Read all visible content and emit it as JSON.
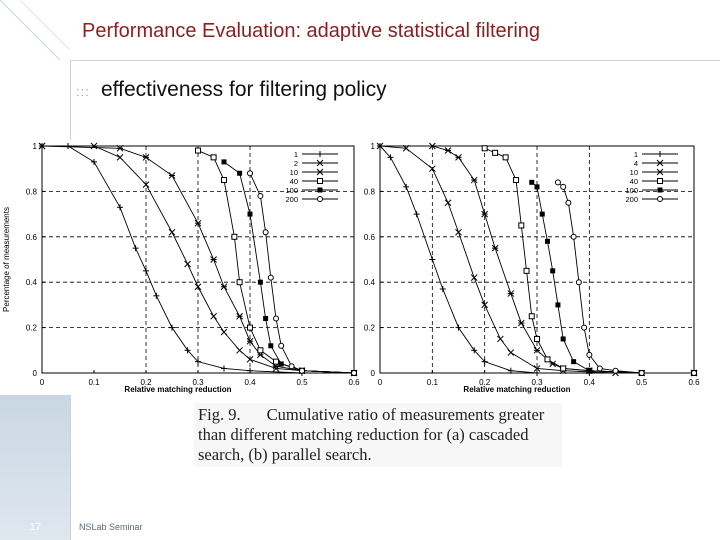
{
  "slide": {
    "title": "Performance Evaluation: adaptive statistical filtering",
    "bullet_marker": ":::",
    "subtitle": "effectiveness for filtering policy",
    "page_number": "17",
    "footer": "NSLab Seminar"
  },
  "caption": {
    "figure_label": "Fig. 9.",
    "text": "Cumulative ratio of measurements greater than different matching reduction for (a) cascaded search, (b) parallel search."
  },
  "chart_data": [
    {
      "type": "line",
      "panel": "a",
      "title": "",
      "xlabel": "Relative matching reduction",
      "ylabel": "Percentage of measurements",
      "xlim": [
        0,
        0.6
      ],
      "ylim": [
        0,
        1
      ],
      "x_ticks": [
        "0",
        "0.1",
        "0.2",
        "0.3",
        "0.4",
        "0.5",
        "0.6"
      ],
      "y_ticks": [
        "0",
        "0.2",
        "0.4",
        "0.6",
        "0.8",
        "1"
      ],
      "grid_x": [
        0.2,
        0.3,
        0.4
      ],
      "grid_y": [
        0.2,
        0.4,
        0.6,
        0.8
      ],
      "legend_position": "top-right",
      "series": [
        {
          "name": "1",
          "marker": "plus",
          "x": [
            0,
            0.05,
            0.1,
            0.15,
            0.18,
            0.2,
            0.22,
            0.25,
            0.28,
            0.3,
            0.35,
            0.4,
            0.5,
            0.6
          ],
          "y": [
            1,
            1,
            0.93,
            0.73,
            0.55,
            0.45,
            0.34,
            0.2,
            0.1,
            0.05,
            0.02,
            0.01,
            0,
            0
          ]
        },
        {
          "name": "2",
          "marker": "x",
          "x": [
            0,
            0.1,
            0.15,
            0.2,
            0.25,
            0.28,
            0.3,
            0.33,
            0.35,
            0.38,
            0.4,
            0.45,
            0.5,
            0.6
          ],
          "y": [
            1,
            1,
            0.95,
            0.83,
            0.62,
            0.48,
            0.38,
            0.25,
            0.18,
            0.1,
            0.06,
            0.02,
            0.01,
            0
          ]
        },
        {
          "name": "10",
          "marker": "asterisk",
          "x": [
            0,
            0.15,
            0.2,
            0.25,
            0.3,
            0.33,
            0.35,
            0.38,
            0.4,
            0.42,
            0.45,
            0.5,
            0.6
          ],
          "y": [
            1,
            0.99,
            0.95,
            0.87,
            0.66,
            0.5,
            0.38,
            0.25,
            0.14,
            0.08,
            0.03,
            0.01,
            0
          ]
        },
        {
          "name": "40",
          "marker": "square",
          "x": [
            0.3,
            0.33,
            0.35,
            0.37,
            0.38,
            0.4,
            0.42,
            0.45,
            0.5,
            0.6
          ],
          "y": [
            0.98,
            0.95,
            0.85,
            0.6,
            0.4,
            0.2,
            0.1,
            0.05,
            0.01,
            0
          ]
        },
        {
          "name": "100",
          "marker": "filled-square",
          "x": [
            0.35,
            0.38,
            0.4,
            0.42,
            0.43,
            0.44,
            0.46,
            0.5,
            0.6
          ],
          "y": [
            0.93,
            0.88,
            0.7,
            0.4,
            0.24,
            0.12,
            0.04,
            0.01,
            0
          ]
        },
        {
          "name": "200",
          "marker": "circle",
          "x": [
            0.4,
            0.42,
            0.43,
            0.44,
            0.45,
            0.46,
            0.48,
            0.5,
            0.6
          ],
          "y": [
            0.88,
            0.78,
            0.62,
            0.42,
            0.24,
            0.12,
            0.03,
            0.01,
            0
          ]
        }
      ]
    },
    {
      "type": "line",
      "panel": "b",
      "title": "",
      "xlabel": "Relative matching reduction",
      "ylabel": "",
      "xlim": [
        0,
        0.6
      ],
      "ylim": [
        0,
        1
      ],
      "x_ticks": [
        "0",
        "0.1",
        "0.2",
        "0.3",
        "0.4",
        "0.5",
        "0.6"
      ],
      "y_ticks": [
        "0",
        "0.2",
        "0.4",
        "0.6",
        "0.8",
        "1"
      ],
      "grid_x": [
        0.1,
        0.2,
        0.3,
        0.4
      ],
      "grid_y": [
        0.2,
        0.4,
        0.6,
        0.8
      ],
      "legend_position": "top-right",
      "series": [
        {
          "name": "1",
          "marker": "plus",
          "x": [
            0,
            0.02,
            0.05,
            0.07,
            0.1,
            0.12,
            0.15,
            0.18,
            0.2,
            0.25,
            0.3,
            0.4,
            0.6
          ],
          "y": [
            1,
            0.95,
            0.82,
            0.7,
            0.5,
            0.37,
            0.2,
            0.1,
            0.05,
            0.01,
            0,
            0,
            0
          ]
        },
        {
          "name": "4",
          "marker": "x",
          "x": [
            0,
            0.05,
            0.1,
            0.13,
            0.15,
            0.18,
            0.2,
            0.23,
            0.25,
            0.3,
            0.35,
            0.45,
            0.6
          ],
          "y": [
            1,
            0.99,
            0.9,
            0.75,
            0.62,
            0.42,
            0.3,
            0.15,
            0.09,
            0.02,
            0.01,
            0,
            0
          ]
        },
        {
          "name": "10",
          "marker": "asterisk",
          "x": [
            0.1,
            0.13,
            0.15,
            0.18,
            0.2,
            0.22,
            0.25,
            0.27,
            0.3,
            0.33,
            0.35,
            0.4,
            0.5,
            0.6
          ],
          "y": [
            1,
            0.98,
            0.95,
            0.85,
            0.7,
            0.55,
            0.35,
            0.22,
            0.1,
            0.04,
            0.02,
            0.01,
            0,
            0
          ]
        },
        {
          "name": "40",
          "marker": "square",
          "x": [
            0.2,
            0.22,
            0.24,
            0.26,
            0.27,
            0.28,
            0.29,
            0.3,
            0.32,
            0.35,
            0.4,
            0.5,
            0.6
          ],
          "y": [
            0.99,
            0.97,
            0.95,
            0.85,
            0.65,
            0.45,
            0.25,
            0.15,
            0.06,
            0.02,
            0.01,
            0,
            0
          ]
        },
        {
          "name": "100",
          "marker": "filled-square",
          "x": [
            0.29,
            0.3,
            0.31,
            0.32,
            0.33,
            0.34,
            0.35,
            0.37,
            0.4,
            0.5,
            0.6
          ],
          "y": [
            0.84,
            0.82,
            0.7,
            0.58,
            0.45,
            0.3,
            0.15,
            0.05,
            0.01,
            0,
            0
          ]
        },
        {
          "name": "200",
          "marker": "circle",
          "x": [
            0.34,
            0.35,
            0.36,
            0.37,
            0.38,
            0.39,
            0.4,
            0.42,
            0.45,
            0.5,
            0.6
          ],
          "y": [
            0.84,
            0.82,
            0.75,
            0.6,
            0.4,
            0.2,
            0.08,
            0.02,
            0.01,
            0,
            0
          ]
        }
      ]
    }
  ]
}
